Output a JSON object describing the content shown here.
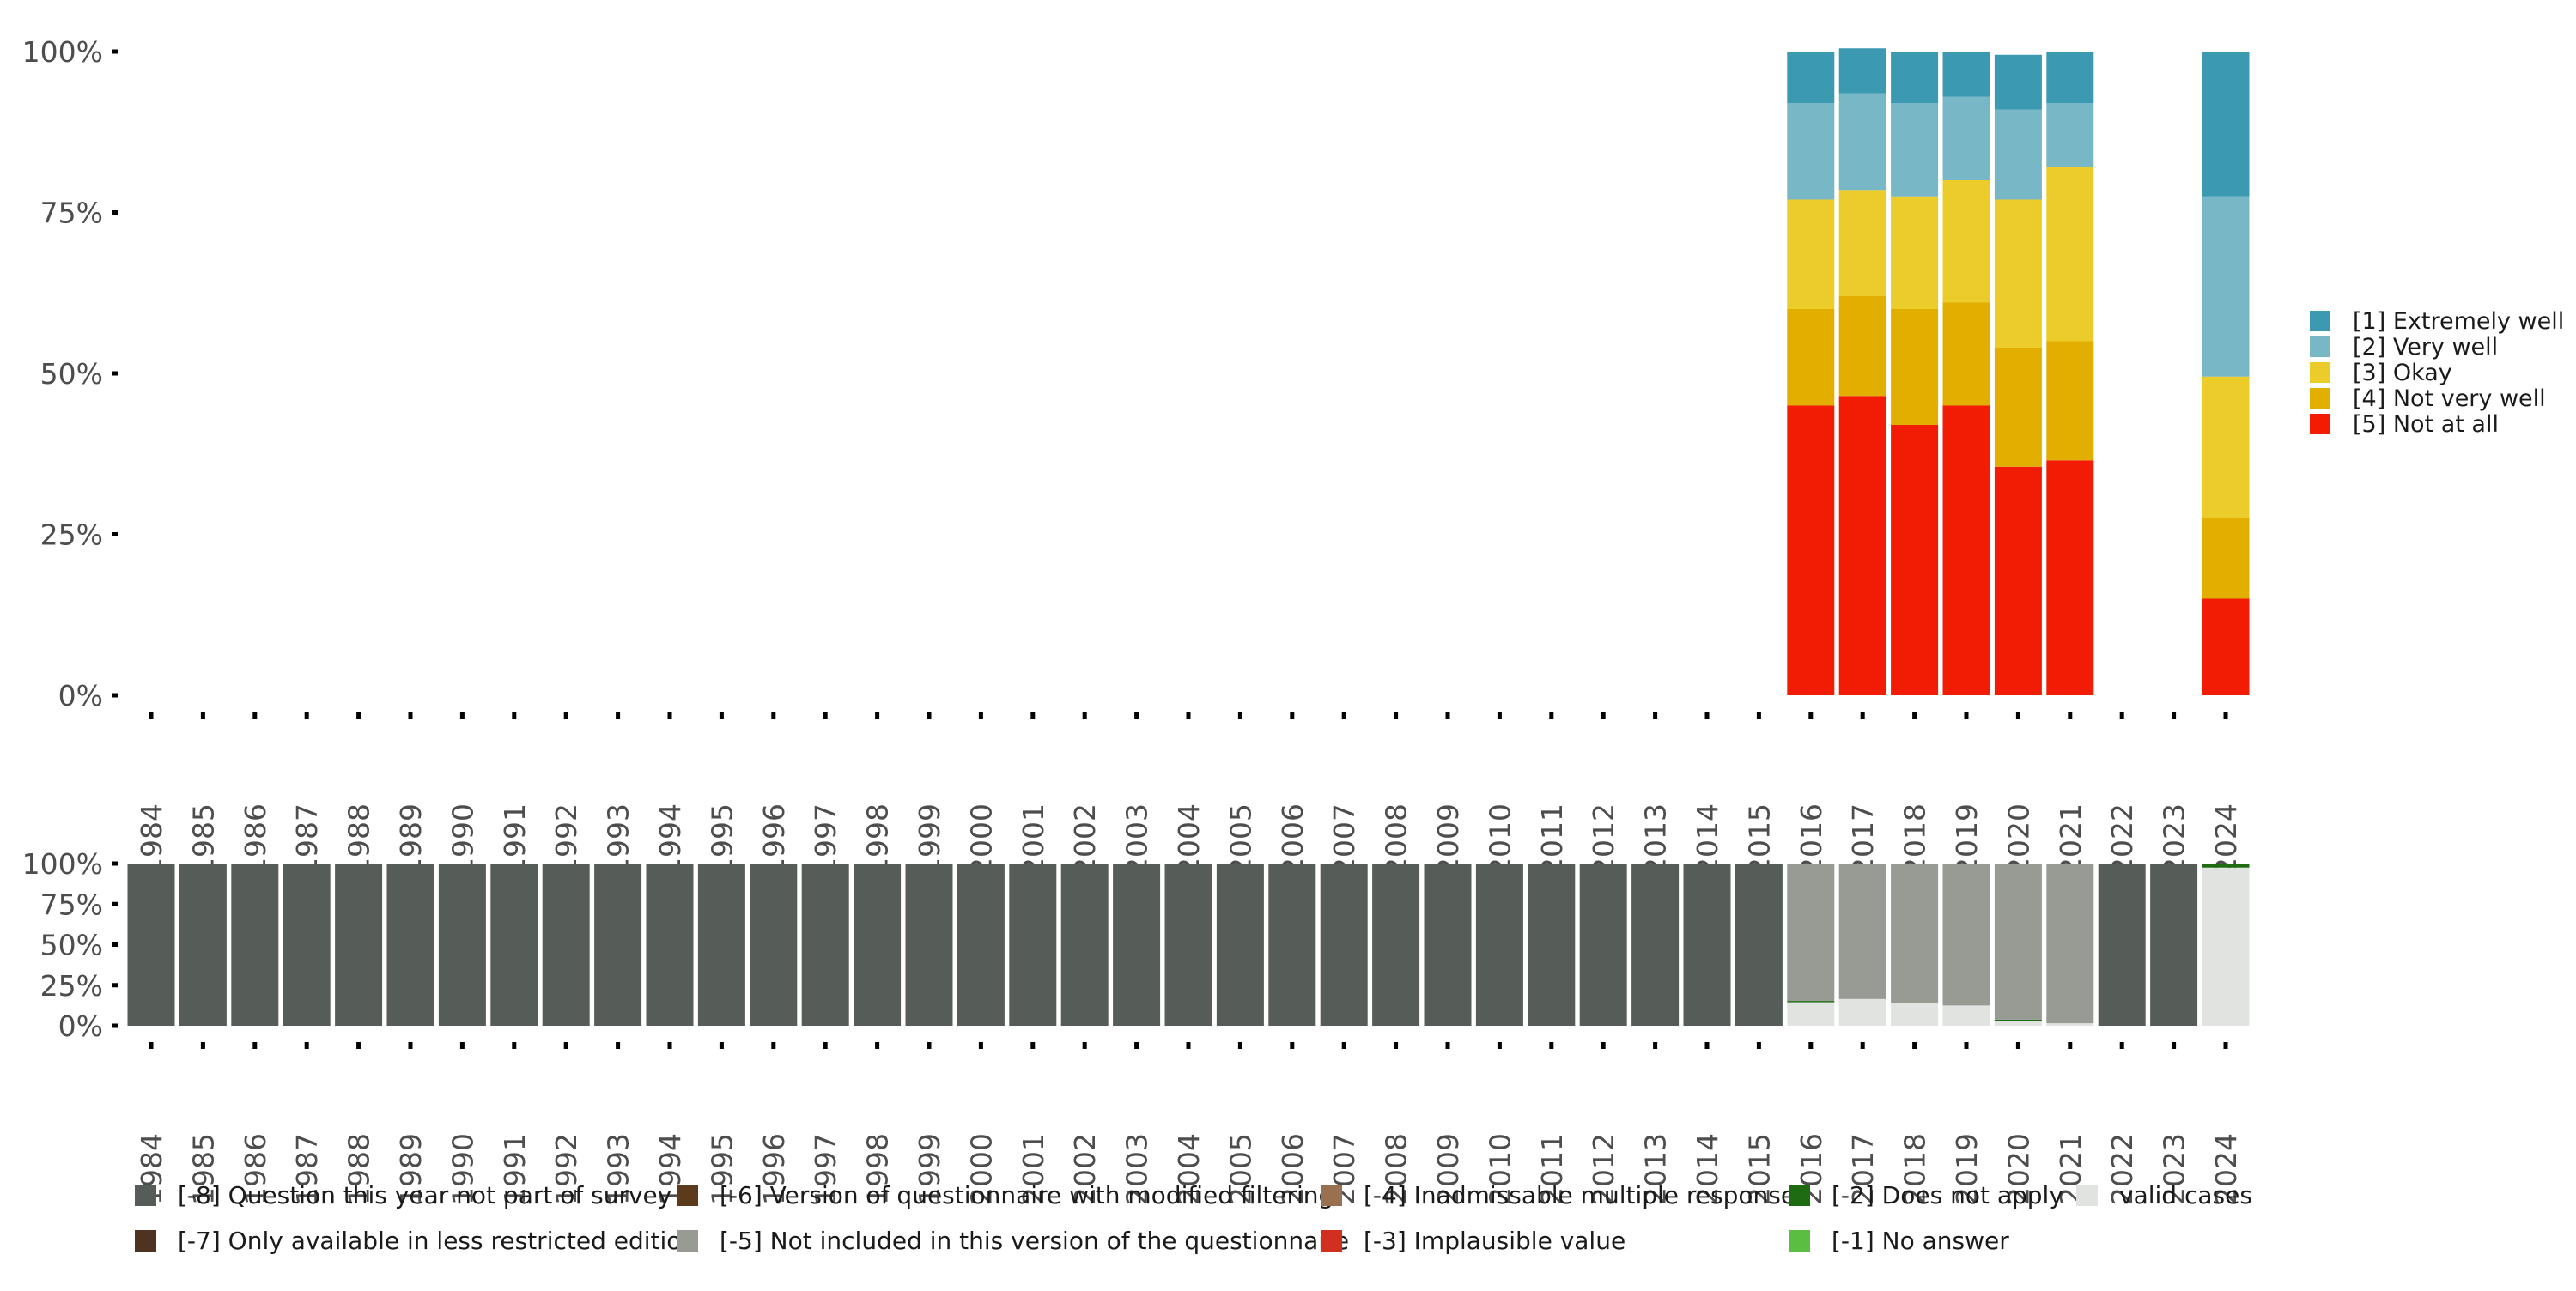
{
  "chart_data": [
    {
      "type": "bar",
      "stacked": true,
      "name": "valid-responses",
      "categories": [
        "1984",
        "1985",
        "1986",
        "1987",
        "1988",
        "1989",
        "1990",
        "1991",
        "1992",
        "1993",
        "1994",
        "1995",
        "1996",
        "1997",
        "1998",
        "1999",
        "2000",
        "2001",
        "2002",
        "2003",
        "2004",
        "2005",
        "2006",
        "2007",
        "2008",
        "2009",
        "2010",
        "2011",
        "2012",
        "2013",
        "2014",
        "2015",
        "2016",
        "2017",
        "2018",
        "2019",
        "2020",
        "2021",
        "2022",
        "2023",
        "2024"
      ],
      "y_ticks": [
        "0%",
        "25%",
        "50%",
        "75%",
        "100%"
      ],
      "ylim": [
        0,
        100
      ],
      "series": [
        {
          "name": "[5] Not at all",
          "color": "#f21c04",
          "values": [
            null,
            null,
            null,
            null,
            null,
            null,
            null,
            null,
            null,
            null,
            null,
            null,
            null,
            null,
            null,
            null,
            null,
            null,
            null,
            null,
            null,
            null,
            null,
            null,
            null,
            null,
            null,
            null,
            null,
            null,
            null,
            null,
            45,
            46.5,
            42,
            45,
            35.5,
            36.5,
            null,
            null,
            15
          ]
        },
        {
          "name": "[4] Not very well",
          "color": "#e2ae00",
          "values": [
            null,
            null,
            null,
            null,
            null,
            null,
            null,
            null,
            null,
            null,
            null,
            null,
            null,
            null,
            null,
            null,
            null,
            null,
            null,
            null,
            null,
            null,
            null,
            null,
            null,
            null,
            null,
            null,
            null,
            null,
            null,
            null,
            15,
            15.5,
            18,
            16,
            18.5,
            18.5,
            null,
            null,
            12.5
          ]
        },
        {
          "name": "[3] Okay",
          "color": "#ebcc2a",
          "values": [
            null,
            null,
            null,
            null,
            null,
            null,
            null,
            null,
            null,
            null,
            null,
            null,
            null,
            null,
            null,
            null,
            null,
            null,
            null,
            null,
            null,
            null,
            null,
            null,
            null,
            null,
            null,
            null,
            null,
            null,
            null,
            null,
            17,
            16.5,
            17.5,
            19,
            23,
            27,
            null,
            null,
            22
          ]
        },
        {
          "name": "[2] Very well",
          "color": "#78b7c5",
          "values": [
            null,
            null,
            null,
            null,
            null,
            null,
            null,
            null,
            null,
            null,
            null,
            null,
            null,
            null,
            null,
            null,
            null,
            null,
            null,
            null,
            null,
            null,
            null,
            null,
            null,
            null,
            null,
            null,
            null,
            null,
            null,
            null,
            15,
            15,
            14.5,
            13,
            14,
            10,
            null,
            null,
            28
          ]
        },
        {
          "name": "[1] Extremely well",
          "color": "#3b9ab2",
          "values": [
            null,
            null,
            null,
            null,
            null,
            null,
            null,
            null,
            null,
            null,
            null,
            null,
            null,
            null,
            null,
            null,
            null,
            null,
            null,
            null,
            null,
            null,
            null,
            null,
            null,
            null,
            null,
            null,
            null,
            null,
            null,
            null,
            8,
            7,
            8,
            7,
            8.5,
            8,
            null,
            null,
            22.5
          ]
        }
      ]
    },
    {
      "type": "bar",
      "stacked": true,
      "name": "missing-codes",
      "categories": [
        "1984",
        "1985",
        "1986",
        "1987",
        "1988",
        "1989",
        "1990",
        "1991",
        "1992",
        "1993",
        "1994",
        "1995",
        "1996",
        "1997",
        "1998",
        "1999",
        "2000",
        "2001",
        "2002",
        "2003",
        "2004",
        "2005",
        "2006",
        "2007",
        "2008",
        "2009",
        "2010",
        "2011",
        "2012",
        "2013",
        "2014",
        "2015",
        "2016",
        "2017",
        "2018",
        "2019",
        "2020",
        "2021",
        "2022",
        "2023",
        "2024"
      ],
      "y_ticks": [
        "0%",
        "25%",
        "50%",
        "75%",
        "100%"
      ],
      "ylim": [
        0,
        100
      ],
      "series": [
        {
          "name": "valid cases",
          "color": "#e1e3e0",
          "values": [
            0,
            0,
            0,
            0,
            0,
            0,
            0,
            0,
            0,
            0,
            0,
            0,
            0,
            0,
            0,
            0,
            0,
            0,
            0,
            0,
            0,
            0,
            0,
            0,
            0,
            0,
            0,
            0,
            0,
            0,
            0,
            0,
            14.5,
            16.5,
            14,
            12.5,
            3,
            1.5,
            0,
            0,
            97.5
          ]
        },
        {
          "name": "[-1] No answer",
          "color": "#5bbe42",
          "values": [
            0,
            0,
            0,
            0,
            0,
            0,
            0,
            0,
            0,
            0,
            0,
            0,
            0,
            0,
            0,
            0,
            0,
            0,
            0,
            0,
            0,
            0,
            0,
            0,
            0,
            0,
            0,
            0,
            0,
            0,
            0,
            0,
            0,
            0,
            0,
            0,
            0,
            0,
            0,
            0,
            0
          ]
        },
        {
          "name": "[-2] Does not apply",
          "color": "#1e6b12",
          "values": [
            0,
            0,
            0,
            0,
            0,
            0,
            0,
            0,
            0,
            0,
            0,
            0,
            0,
            0,
            0,
            0,
            0,
            0,
            0,
            0,
            0,
            0,
            0,
            0,
            0,
            0,
            0,
            0,
            0,
            0,
            0,
            0,
            0.8,
            0,
            0,
            0,
            0.8,
            0,
            0,
            0,
            2.5
          ]
        },
        {
          "name": "[-3] Implausible value",
          "color": "#d12f20",
          "values": [
            0,
            0,
            0,
            0,
            0,
            0,
            0,
            0,
            0,
            0,
            0,
            0,
            0,
            0,
            0,
            0,
            0,
            0,
            0,
            0,
            0,
            0,
            0,
            0,
            0,
            0,
            0,
            0,
            0,
            0,
            0,
            0,
            0,
            0,
            0,
            0,
            0,
            0,
            0,
            0,
            0
          ]
        },
        {
          "name": "[-4] Inadmissable multiple response",
          "color": "#9a7150",
          "values": [
            0,
            0,
            0,
            0,
            0,
            0,
            0,
            0,
            0,
            0,
            0,
            0,
            0,
            0,
            0,
            0,
            0,
            0,
            0,
            0,
            0,
            0,
            0,
            0,
            0,
            0,
            0,
            0,
            0,
            0,
            0,
            0,
            0,
            0,
            0,
            0,
            0,
            0,
            0,
            0,
            0
          ]
        },
        {
          "name": "[-5] Not included in this version of the questionnaire",
          "color": "#979b94",
          "values": [
            0,
            0,
            0,
            0,
            0,
            0,
            0,
            0,
            0,
            0,
            0,
            0,
            0,
            0,
            0,
            0,
            0,
            0,
            0,
            0,
            0,
            0,
            0,
            0,
            0,
            0,
            0,
            0,
            0,
            0,
            0,
            0,
            84.7,
            83.5,
            86,
            87.5,
            96.2,
            98.5,
            0,
            0,
            0
          ]
        },
        {
          "name": "[-6] Version of questionnaire with modified filtering",
          "color": "#5c3a1c",
          "values": [
            0,
            0,
            0,
            0,
            0,
            0,
            0,
            0,
            0,
            0,
            0,
            0,
            0,
            0,
            0,
            0,
            0,
            0,
            0,
            0,
            0,
            0,
            0,
            0,
            0,
            0,
            0,
            0,
            0,
            0,
            0,
            0,
            0,
            0,
            0,
            0,
            0,
            0,
            0,
            0,
            0
          ]
        },
        {
          "name": "[-7] Only available in less restricted edition",
          "color": "#4e3420",
          "values": [
            0,
            0,
            0,
            0,
            0,
            0,
            0,
            0,
            0,
            0,
            0,
            0,
            0,
            0,
            0,
            0,
            0,
            0,
            0,
            0,
            0,
            0,
            0,
            0,
            0,
            0,
            0,
            0,
            0,
            0,
            0,
            0,
            0,
            0,
            0,
            0,
            0,
            0,
            0,
            0,
            0
          ]
        },
        {
          "name": "[-8] Question this year not part of survey",
          "color": "#565c57",
          "values": [
            100,
            100,
            100,
            100,
            100,
            100,
            100,
            100,
            100,
            100,
            100,
            100,
            100,
            100,
            100,
            100,
            100,
            100,
            100,
            100,
            100,
            100,
            100,
            100,
            100,
            100,
            100,
            100,
            100,
            100,
            100,
            100,
            0,
            0,
            0,
            0,
            0,
            0,
            100,
            100,
            0
          ]
        }
      ]
    }
  ],
  "top_legend": [
    {
      "label": "[1] Extremely well",
      "color": "#3b9ab2"
    },
    {
      "label": "[2] Very well",
      "color": "#78b7c5"
    },
    {
      "label": "[3] Okay",
      "color": "#ebcc2a"
    },
    {
      "label": "[4] Not very well",
      "color": "#e2ae00"
    },
    {
      "label": "[5] Not at all",
      "color": "#f21c04"
    }
  ],
  "bottom_legend": [
    {
      "label": "[-8] Question this year not part of survey",
      "color": "#565c57"
    },
    {
      "label": "[-6] Version of questionnaire with modified filtering",
      "color": "#5c3a1c"
    },
    {
      "label": "[-4] Inadmissable multiple response",
      "color": "#9a7150"
    },
    {
      "label": "[-2] Does not apply",
      "color": "#1e6b12"
    },
    {
      "label": "valid cases",
      "color": "#e1e3e0"
    },
    {
      "label": "[-7] Only available in less restricted edition",
      "color": "#4e3420"
    },
    {
      "label": "[-5] Not included in this version of the questionnaire",
      "color": "#979b94"
    },
    {
      "label": "[-3] Implausible value",
      "color": "#d12f20"
    },
    {
      "label": "[-1] No answer",
      "color": "#5bbe42"
    }
  ]
}
